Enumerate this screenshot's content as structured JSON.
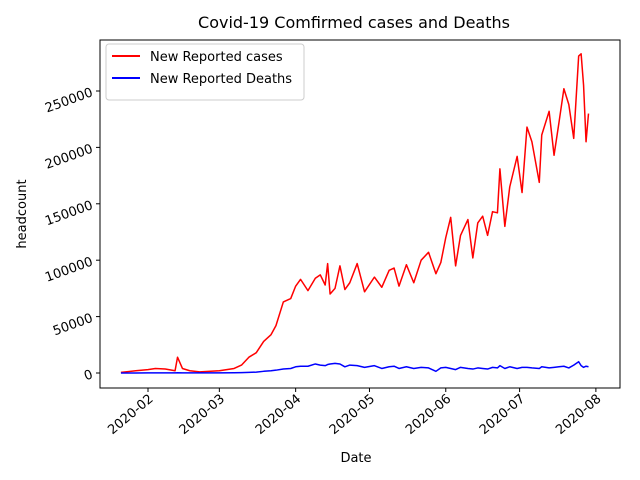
{
  "chart_data": {
    "type": "line",
    "title": "Covid-19 Comfirmed cases and Deaths",
    "x_label": "Date",
    "y_label": "headcount",
    "x": [
      18282,
      18288,
      18293,
      18296,
      18300,
      18304,
      18305,
      18307,
      18310,
      18314,
      18322,
      18328,
      18331,
      18334,
      18337,
      18340,
      18343,
      18345,
      18348,
      18351,
      18353,
      18355,
      18358,
      18361,
      18363,
      18365,
      18366,
      18367,
      18369,
      18371,
      18373,
      18375,
      18378,
      18381,
      18385,
      18388,
      18391,
      18393,
      18395,
      18398,
      18401,
      18404,
      18407,
      18410,
      18412,
      18414,
      18416,
      18418,
      18420,
      18423,
      18425,
      18427,
      18429,
      18431,
      18433,
      18435,
      18436,
      18438,
      18440,
      18443,
      18445,
      18447,
      18449,
      18452,
      18453,
      18456,
      18458,
      18460,
      18462,
      18464,
      18466,
      18468,
      18469,
      18470,
      18471,
      18472
    ],
    "series": [
      {
        "name": "New Reported cases",
        "color": "#ff0000",
        "values": [
          500,
          2000,
          3000,
          4000,
          3500,
          2000,
          14000,
          4000,
          2000,
          1000,
          2000,
          4000,
          7000,
          14000,
          18000,
          28000,
          34000,
          42000,
          63000,
          66000,
          77000,
          83000,
          73000,
          84000,
          87000,
          78000,
          97000,
          70000,
          75000,
          95000,
          74000,
          80000,
          97000,
          72000,
          85000,
          76000,
          91000,
          93000,
          77000,
          96000,
          80000,
          100000,
          107000,
          88000,
          98000,
          120000,
          138000,
          95000,
          122000,
          136000,
          102000,
          133000,
          139000,
          122000,
          143000,
          142000,
          181000,
          130000,
          165000,
          192000,
          160000,
          218000,
          205000,
          169000,
          211000,
          232000,
          193000,
          222000,
          252000,
          238000,
          208000,
          281000,
          283000,
          255000,
          205000,
          230000
        ]
      },
      {
        "name": "New Reported Deaths",
        "color": "#0000ff",
        "values": [
          0,
          0,
          100,
          100,
          100,
          100,
          200,
          100,
          100,
          100,
          100,
          200,
          300,
          500,
          800,
          1500,
          2000,
          2500,
          3500,
          4000,
          5500,
          6000,
          6000,
          8000,
          7000,
          6500,
          7500,
          8000,
          8500,
          8000,
          5500,
          7000,
          6500,
          5000,
          6500,
          4000,
          5500,
          6000,
          4000,
          5500,
          4000,
          5000,
          4500,
          1500,
          4500,
          5000,
          4000,
          3000,
          5000,
          4000,
          3500,
          4500,
          4000,
          3500,
          5000,
          4500,
          6500,
          4000,
          5500,
          4000,
          5000,
          5000,
          4500,
          4000,
          5500,
          4500,
          5000,
          5500,
          6000,
          4500,
          7000,
          10000,
          6500,
          5000,
          6000,
          5500
        ]
      }
    ],
    "xlim": [
      18273.5,
      18484.8
    ],
    "xticks": [
      {
        "value": 18293,
        "label": "2020-02"
      },
      {
        "value": 18322,
        "label": "2020-03"
      },
      {
        "value": 18353,
        "label": "2020-04"
      },
      {
        "value": 18383,
        "label": "2020-05"
      },
      {
        "value": 18414,
        "label": "2020-06"
      },
      {
        "value": 18444,
        "label": "2020-07"
      },
      {
        "value": 18475,
        "label": "2020-08"
      }
    ],
    "ylim": [
      -13300,
      295200
    ],
    "yticks": [
      0,
      50000,
      100000,
      150000,
      200000,
      250000
    ],
    "legend": "upper left"
  }
}
